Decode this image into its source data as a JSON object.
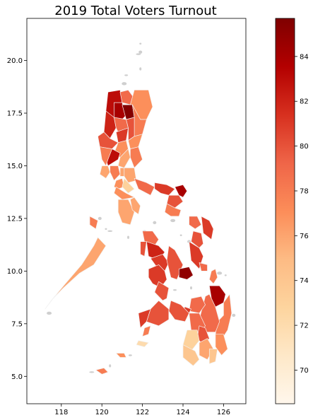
{
  "chart_data": {
    "type": "choropleth",
    "title": "2019 Total Voters Turnout",
    "xlim": [
      116.3,
      127.1
    ],
    "ylim": [
      3.7,
      22.0
    ],
    "x_ticks": [
      118,
      120,
      122,
      124,
      126
    ],
    "y_ticks": [
      5.0,
      7.5,
      10.0,
      12.5,
      15.0,
      17.5,
      20.0
    ],
    "colorbar": {
      "colormap": "OrRd",
      "min": 68.5,
      "max": 85.7,
      "ticks": [
        70,
        72,
        74,
        76,
        78,
        80,
        82,
        84
      ]
    },
    "regions": [
      {
        "lon": [
          120.3,
          120.9,
          121.0,
          120.7,
          120.4,
          120.2
        ],
        "lat": [
          18.5,
          18.6,
          18.0,
          17.3,
          17.1,
          17.6
        ],
        "value": 83
      },
      {
        "lon": [
          120.9,
          121.3,
          121.6,
          121.4,
          121.0
        ],
        "lat": [
          18.5,
          18.6,
          18.2,
          17.9,
          18.0
        ],
        "value": 79
      },
      {
        "lon": [
          121.6,
          122.3,
          122.5,
          122.2,
          121.9,
          121.4
        ],
        "lat": [
          18.6,
          18.6,
          17.8,
          17.2,
          17.2,
          17.9
        ],
        "value": 77
      },
      {
        "lon": [
          120.6,
          121.0,
          121.2,
          120.9,
          120.6
        ],
        "lat": [
          18.0,
          18.0,
          17.4,
          17.1,
          17.3
        ],
        "value": 84
      },
      {
        "lon": [
          121.0,
          121.5,
          121.6,
          121.2
        ],
        "lat": [
          17.9,
          17.9,
          17.3,
          17.2
        ],
        "value": 85.5
      },
      {
        "lon": [
          121.5,
          121.9,
          122.2,
          122.0,
          121.6,
          121.6
        ],
        "lat": [
          17.9,
          17.2,
          17.2,
          16.5,
          16.4,
          17.3
        ],
        "value": 78
      },
      {
        "lon": [
          120.2,
          120.6,
          120.7,
          120.4,
          120.1
        ],
        "lat": [
          17.6,
          17.3,
          16.8,
          16.3,
          16.6
        ],
        "value": 82
      },
      {
        "lon": [
          120.6,
          121.2,
          121.3,
          120.8,
          120.7
        ],
        "lat": [
          17.3,
          17.2,
          16.8,
          16.6,
          16.8
        ],
        "value": 79
      },
      {
        "lon": [
          121.2,
          121.6,
          121.6,
          121.3,
          121.3
        ],
        "lat": [
          17.2,
          17.3,
          16.4,
          16.2,
          16.8
        ],
        "value": 80
      },
      {
        "lon": [
          120.7,
          121.3,
          121.2,
          120.8
        ],
        "lat": [
          16.6,
          16.8,
          16.2,
          16.1
        ],
        "value": 81
      },
      {
        "lon": [
          121.3,
          121.6,
          122.0,
          121.8,
          121.4
        ],
        "lat": [
          16.2,
          16.4,
          16.5,
          15.9,
          15.8
        ],
        "value": 77
      },
      {
        "lon": [
          119.8,
          120.1,
          120.4,
          120.8,
          120.5,
          119.9
        ],
        "lat": [
          16.4,
          16.6,
          16.3,
          16.1,
          15.8,
          15.9
        ],
        "value": 80
      },
      {
        "lon": [
          120.8,
          121.2,
          121.3,
          120.9,
          120.6
        ],
        "lat": [
          16.1,
          16.2,
          15.8,
          15.4,
          15.6
        ],
        "value": 77
      },
      {
        "lon": [
          120.5,
          120.9,
          120.8,
          120.3,
          120.2
        ],
        "lat": [
          15.8,
          15.6,
          15.3,
          15.0,
          15.3
        ],
        "value": 83
      },
      {
        "lon": [
          120.9,
          121.3,
          121.4,
          121.1,
          120.8
        ],
        "lat": [
          15.4,
          15.8,
          15.4,
          14.9,
          15.0
        ],
        "value": 76
      },
      {
        "lon": [
          119.9,
          120.5,
          120.3,
          120.2,
          120.0
        ],
        "lat": [
          15.9,
          15.8,
          15.3,
          15.0,
          15.3
        ],
        "value": 78
      },
      {
        "lon": [
          121.4,
          121.8,
          122.0,
          121.6,
          121.4
        ],
        "lat": [
          15.8,
          15.9,
          15.3,
          14.9,
          15.4
        ],
        "value": 78
      },
      {
        "lon": [
          120.0,
          120.3,
          120.4,
          120.2,
          119.9
        ],
        "lat": [
          15.0,
          15.0,
          14.7,
          14.4,
          14.6
        ],
        "value": 76
      },
      {
        "lon": [
          120.4,
          120.8,
          120.9,
          120.6,
          120.4
        ],
        "lat": [
          15.0,
          15.0,
          14.6,
          14.3,
          14.7
        ],
        "value": 78
      },
      {
        "lon": [
          120.9,
          121.1,
          121.1,
          120.9
        ],
        "lat": [
          14.9,
          14.9,
          14.5,
          14.5
        ],
        "value": 76
      },
      {
        "lon": [
          121.1,
          121.6,
          121.7,
          121.3,
          121.1
        ],
        "lat": [
          14.9,
          14.9,
          14.3,
          14.2,
          14.5
        ],
        "value": 76
      },
      {
        "lon": [
          120.7,
          121.0,
          121.1,
          120.8,
          120.6
        ],
        "lat": [
          14.3,
          14.4,
          14.0,
          13.9,
          14.0
        ],
        "value": 77
      },
      {
        "lon": [
          121.1,
          121.3,
          121.6,
          121.3,
          121.0
        ],
        "lat": [
          14.4,
          14.2,
          13.9,
          13.7,
          14.0
        ],
        "value": 73
      },
      {
        "lon": [
          120.7,
          121.2,
          121.6,
          121.0,
          120.6
        ],
        "lat": [
          14.0,
          13.7,
          13.5,
          13.4,
          13.7
        ],
        "value": 77
      },
      {
        "lon": [
          121.6,
          122.2,
          122.6,
          122.4,
          121.8
        ],
        "lat": [
          14.4,
          14.2,
          14.0,
          13.6,
          13.9
        ],
        "value": 79
      },
      {
        "lon": [
          122.6,
          123.2,
          123.6,
          123.3,
          122.9,
          122.6
        ],
        "lat": [
          14.2,
          14.1,
          13.9,
          13.6,
          13.7,
          13.9
        ],
        "value": 81
      },
      {
        "lon": [
          123.6,
          124.0,
          124.2,
          124.0,
          123.8
        ],
        "lat": [
          14.0,
          14.1,
          13.8,
          13.5,
          13.6
        ],
        "value": 84
      },
      {
        "lon": [
          123.3,
          123.8,
          124.0,
          123.6,
          123.2
        ],
        "lat": [
          13.6,
          13.6,
          13.3,
          13.0,
          13.2
        ],
        "value": 80
      },
      {
        "lon": [
          123.2,
          123.6,
          123.9,
          123.8,
          123.4,
          123.1
        ],
        "lat": [
          13.2,
          13.0,
          12.9,
          12.6,
          12.6,
          12.8
        ],
        "value": 78
      },
      {
        "lon": [
          120.8,
          121.3,
          121.6,
          121.4,
          121.0,
          120.8
        ],
        "lat": [
          13.4,
          13.4,
          12.8,
          12.2,
          12.3,
          12.8
        ],
        "value": 76
      },
      {
        "lon": [
          121.4,
          121.6,
          121.9,
          121.8,
          121.5
        ],
        "lat": [
          13.4,
          13.5,
          13.1,
          12.7,
          12.9
        ],
        "value": 76
      },
      {
        "lon": [
          119.4,
          119.8,
          119.7,
          119.4
        ],
        "lat": [
          12.6,
          12.4,
          12.0,
          12.2
        ],
        "value": 78
      },
      {
        "lon": [
          119.8,
          120.2,
          119.6,
          118.9,
          118.1,
          117.6,
          117.2,
          117.5,
          118.2,
          119.0,
          119.6
        ],
        "lat": [
          11.6,
          11.2,
          10.3,
          9.9,
          9.2,
          8.7,
          8.2,
          8.6,
          9.4,
          10.3,
          11.2
        ],
        "value": 76
      },
      {
        "lon": [
          124.9,
          125.3,
          125.5,
          125.4,
          125.0
        ],
        "lat": [
          12.6,
          12.4,
          12.0,
          11.5,
          11.8
        ],
        "value": 81
      },
      {
        "lon": [
          124.3,
          124.7,
          124.9,
          124.6,
          124.3
        ],
        "lat": [
          12.6,
          12.6,
          12.2,
          12.0,
          12.2
        ],
        "value": 79
      },
      {
        "lon": [
          124.5,
          124.9,
          125.0,
          124.8,
          124.4
        ],
        "lat": [
          11.9,
          11.8,
          11.3,
          11.1,
          11.4
        ],
        "value": 80
      },
      {
        "lon": [
          124.3,
          124.8,
          125.0,
          124.8,
          124.4
        ],
        "lat": [
          11.4,
          11.1,
          10.7,
          10.1,
          10.5
        ],
        "value": 81
      },
      {
        "lon": [
          124.8,
          125.2,
          125.2,
          124.9
        ],
        "lat": [
          10.4,
          10.3,
          10.0,
          10.0
        ],
        "value": 79
      },
      {
        "lon": [
          122.0,
          122.5,
          122.8,
          122.6,
          122.1
        ],
        "lat": [
          11.9,
          11.9,
          11.5,
          11.2,
          11.4
        ],
        "value": 79
      },
      {
        "lon": [
          121.9,
          122.2,
          122.1,
          121.9
        ],
        "lat": [
          11.4,
          11.4,
          10.7,
          10.8
        ],
        "value": 80
      },
      {
        "lon": [
          122.2,
          122.8,
          123.1,
          122.8,
          122.3
        ],
        "lat": [
          11.4,
          11.2,
          10.9,
          10.5,
          10.7
        ],
        "value": 82
      },
      {
        "lon": [
          122.4,
          123.0,
          123.3,
          123.1,
          122.7
        ],
        "lat": [
          10.6,
          10.8,
          10.4,
          10.0,
          10.2
        ],
        "value": 81
      },
      {
        "lon": [
          122.3,
          122.8,
          123.1,
          123.2,
          122.9,
          122.5,
          122.3
        ],
        "lat": [
          10.1,
          10.3,
          10.0,
          9.6,
          9.2,
          9.4,
          9.7
        ],
        "value": 81
      },
      {
        "lon": [
          122.8,
          123.3,
          123.2,
          123.0,
          122.6
        ],
        "lat": [
          9.5,
          9.2,
          8.7,
          8.6,
          9.0
        ],
        "value": 80
      },
      {
        "lon": [
          123.3,
          123.6,
          124.0,
          123.7,
          123.4,
          123.2
        ],
        "lat": [
          11.2,
          11.0,
          10.3,
          9.6,
          9.7,
          10.5
        ],
        "value": 80
      },
      {
        "lon": [
          123.8,
          124.3,
          124.5,
          124.2,
          123.8
        ],
        "lat": [
          10.1,
          10.2,
          9.8,
          9.6,
          9.7
        ],
        "value": 85
      },
      {
        "lon": [
          125.4,
          125.6,
          125.7,
          125.5,
          125.3
        ],
        "lat": [
          10.0,
          10.1,
          9.7,
          9.4,
          9.6
        ],
        "value": 78
      },
      {
        "lon": [
          125.3,
          125.8,
          126.1,
          126.0,
          125.6,
          125.4
        ],
        "lat": [
          9.3,
          9.3,
          8.9,
          8.5,
          8.3,
          8.7
        ],
        "value": 84
      },
      {
        "lon": [
          126.0,
          126.3,
          126.4,
          126.2,
          125.8,
          125.6,
          125.7,
          126.0
        ],
        "lat": [
          8.5,
          8.9,
          8.0,
          7.2,
          6.6,
          7.0,
          7.6,
          7.9
        ],
        "value": 78
      },
      {
        "lon": [
          125.1,
          125.3,
          125.6,
          125.8,
          125.6,
          125.1,
          124.8
        ],
        "lat": [
          8.8,
          8.9,
          8.3,
          7.6,
          7.1,
          7.1,
          7.7
        ],
        "value": 79
      },
      {
        "lon": [
          124.4,
          124.9,
          125.1,
          124.8,
          124.3
        ],
        "lat": [
          8.7,
          8.8,
          8.4,
          8.0,
          8.1
        ],
        "value": 79
      },
      {
        "lon": [
          124.1,
          124.4,
          124.3,
          123.8,
          123.9
        ],
        "lat": [
          8.3,
          8.2,
          8.0,
          7.8,
          8.1
        ],
        "value": 81
      },
      {
        "lon": [
          123.4,
          123.9,
          124.3,
          124.1,
          123.6,
          123.3
        ],
        "lat": [
          8.6,
          8.4,
          8.0,
          7.6,
          7.7,
          8.1
        ],
        "value": 80
      },
      {
        "lon": [
          122.4,
          122.8,
          123.3,
          123.3,
          122.8,
          122.2
        ],
        "lat": [
          8.2,
          8.6,
          8.2,
          7.7,
          7.4,
          7.6
        ],
        "value": 80
      },
      {
        "lon": [
          121.8,
          122.4,
          122.2,
          121.9
        ],
        "lat": [
          8.0,
          8.2,
          7.6,
          7.3
        ],
        "value": 81
      },
      {
        "lon": [
          122.1,
          122.4,
          122.3,
          122.0
        ],
        "lat": [
          7.3,
          7.4,
          7.0,
          6.9
        ],
        "value": 78
      },
      {
        "lon": [
          124.3,
          124.8,
          125.1,
          124.8,
          124.4
        ],
        "lat": [
          8.0,
          8.0,
          7.4,
          7.0,
          7.2
        ],
        "value": 79
      },
      {
        "lon": [
          124.8,
          125.1,
          125.3,
          125.0,
          124.7
        ],
        "lat": [
          7.4,
          7.3,
          6.8,
          6.5,
          6.8
        ],
        "value": 80
      },
      {
        "lon": [
          124.2,
          124.7,
          124.8,
          124.4,
          124.0
        ],
        "lat": [
          7.2,
          7.2,
          6.7,
          6.2,
          6.5
        ],
        "value": 73
      },
      {
        "lon": [
          124.8,
          125.2,
          125.5,
          125.2,
          124.8
        ],
        "lat": [
          6.6,
          6.8,
          6.3,
          5.8,
          6.0
        ],
        "value": 76
      },
      {
        "lon": [
          125.3,
          125.7,
          125.6,
          125.3
        ],
        "lat": [
          6.3,
          6.3,
          5.7,
          5.6
        ],
        "value": 74
      },
      {
        "lon": [
          124.0,
          124.6,
          124.8,
          124.5,
          124.0
        ],
        "lat": [
          6.5,
          6.2,
          5.8,
          5.5,
          5.9
        ],
        "value": 74
      },
      {
        "lon": [
          125.6,
          126.0,
          126.2,
          125.9,
          125.6
        ],
        "lat": [
          7.0,
          7.0,
          6.3,
          6.0,
          6.4
        ],
        "value": 77
      },
      {
        "lon": [
          121.8,
          122.3,
          122.1,
          121.7
        ],
        "lat": [
          6.7,
          6.6,
          6.4,
          6.5
        ],
        "value": 72
      },
      {
        "lon": [
          120.7,
          121.1,
          121.2,
          120.9
        ],
        "lat": [
          6.1,
          6.1,
          5.9,
          5.9
        ],
        "value": 77
      },
      {
        "lon": [
          119.7,
          120.1,
          120.3,
          120.0
        ],
        "lat": [
          5.3,
          5.4,
          5.2,
          5.1
        ],
        "value": 78
      }
    ]
  }
}
